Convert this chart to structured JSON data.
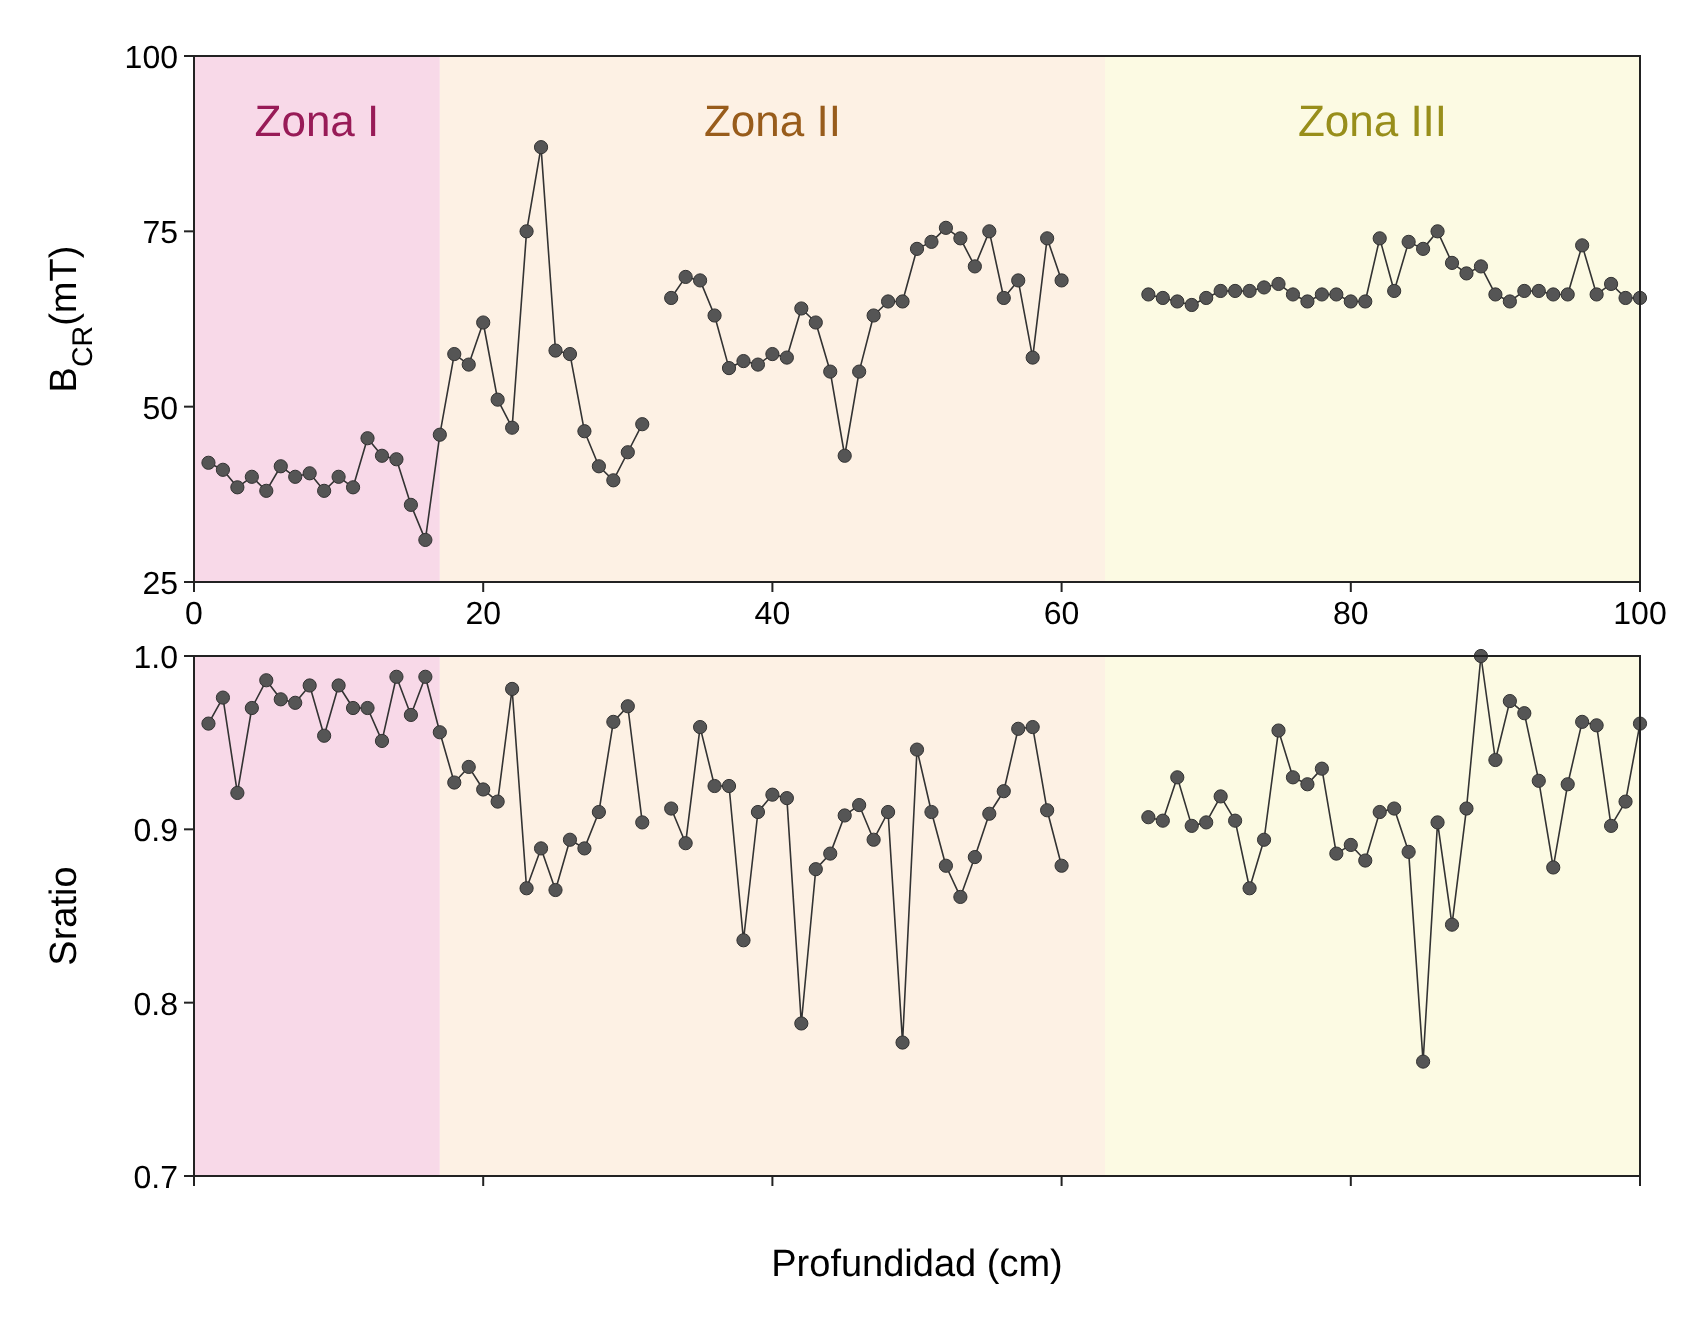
{
  "chart_data": [
    {
      "type": "line",
      "ylabel": "B$_{CR}$(mT)",
      "marker": "circle",
      "line_style": "solid",
      "xlim": [
        0,
        100
      ],
      "xticks": [
        0,
        20,
        40,
        60,
        80,
        100
      ],
      "ylim": [
        25,
        100
      ],
      "yticks": [
        25,
        50,
        75,
        100
      ],
      "bands": [
        {
          "axis": "x",
          "from": 0,
          "to": 17,
          "label": "Zona I",
          "color": "#f8d9e8"
        },
        {
          "axis": "x",
          "from": 17,
          "to": 63,
          "label": "Zona II",
          "color": "#fdf1e4"
        },
        {
          "axis": "x",
          "from": 63,
          "to": 100,
          "label": "Zona III",
          "color": "#fcfae3"
        }
      ],
      "series": [
        {
          "color": "#555555",
          "x": [
            1,
            2,
            3,
            4,
            5,
            6,
            7,
            8,
            9,
            10,
            11,
            12,
            13,
            14,
            15,
            16,
            17,
            18,
            19,
            20,
            21,
            22,
            23,
            24,
            25,
            26,
            27,
            28,
            29,
            30,
            31,
            32,
            33,
            34,
            35,
            36,
            37,
            38,
            39,
            40,
            41,
            42,
            43,
            44,
            45,
            46,
            47,
            48,
            49,
            50,
            51,
            52,
            53,
            54,
            55,
            56,
            57,
            58,
            59,
            60,
            61,
            66,
            67,
            68,
            69,
            70,
            71,
            72,
            73,
            74,
            75,
            76,
            77,
            78,
            79,
            80,
            81,
            82,
            83,
            84,
            85,
            86,
            87,
            88,
            89,
            90,
            91,
            92,
            93,
            94,
            95,
            96,
            97,
            98,
            99,
            100
          ],
          "values": [
            42,
            41,
            38.5,
            40,
            38,
            41.5,
            40,
            40.5,
            38,
            40,
            38.5,
            45.5,
            43,
            42.5,
            36,
            31,
            46,
            57.5,
            56,
            62,
            51,
            47,
            75,
            87,
            58,
            57.5,
            46.5,
            41.5,
            39.5,
            43.5,
            47.5,
            null,
            65.5,
            68.5,
            68,
            63,
            55.5,
            56.5,
            56,
            57.5,
            57,
            64,
            62,
            55,
            43,
            55,
            63,
            65,
            65,
            72.5,
            73.5,
            75.5,
            74,
            70,
            75,
            65.5,
            68,
            57,
            74,
            68,
            null,
            66,
            65.5,
            65,
            64.5,
            65.5,
            66.5,
            66.5,
            66.5,
            67,
            67.5,
            66,
            65,
            66,
            66,
            65,
            65,
            74,
            66.5,
            73.5,
            72.5,
            75,
            70.5,
            69,
            70,
            66,
            65,
            66.5,
            66.5,
            66,
            66,
            73,
            66,
            67.5,
            65.5,
            65.5
          ]
        }
      ]
    },
    {
      "type": "line",
      "ylabel": "Sratio",
      "xlabel": "Profundidad (cm)",
      "marker": "circle",
      "line_style": "solid",
      "tick_labels": "y",
      "xlim": [
        0,
        100
      ],
      "xticks": [
        0,
        20,
        40,
        60,
        80,
        100
      ],
      "ylim": [
        0.7,
        1.0
      ],
      "yticks": [
        {
          "value": 0.7,
          "label": "0.7"
        },
        {
          "value": 0.8,
          "label": "0.8"
        },
        {
          "value": 0.9,
          "label": "0.9"
        },
        {
          "value": 1.0,
          "label": "1.0"
        }
      ],
      "bands": [
        {
          "axis": "x",
          "from": 0,
          "to": 17,
          "color": "#f8d9e8"
        },
        {
          "axis": "x",
          "from": 17,
          "to": 63,
          "color": "#fdf1e4"
        },
        {
          "axis": "x",
          "from": 63,
          "to": 100,
          "color": "#fcfae3"
        }
      ],
      "series": [
        {
          "color": "#555555",
          "x": [
            1,
            2,
            3,
            4,
            5,
            6,
            7,
            8,
            9,
            10,
            11,
            12,
            13,
            14,
            15,
            16,
            17,
            18,
            19,
            20,
            21,
            22,
            23,
            24,
            25,
            26,
            27,
            28,
            29,
            30,
            31,
            32,
            33,
            34,
            35,
            36,
            37,
            38,
            39,
            40,
            41,
            42,
            43,
            44,
            45,
            46,
            47,
            48,
            49,
            50,
            51,
            52,
            53,
            54,
            55,
            56,
            57,
            58,
            59,
            60,
            61,
            66,
            67,
            68,
            69,
            70,
            71,
            72,
            73,
            74,
            75,
            76,
            77,
            78,
            79,
            80,
            81,
            82,
            83,
            84,
            85,
            86,
            87,
            88,
            89,
            90,
            91,
            92,
            93,
            94,
            95,
            96,
            97,
            98,
            99,
            100
          ],
          "values": [
            0.961,
            0.976,
            0.921,
            0.97,
            0.986,
            0.975,
            0.973,
            0.983,
            0.954,
            0.983,
            0.97,
            0.97,
            0.951,
            0.988,
            0.966,
            0.988,
            0.956,
            0.927,
            0.936,
            0.923,
            0.916,
            0.981,
            0.866,
            0.889,
            0.865,
            0.894,
            0.889,
            0.91,
            0.962,
            0.971,
            0.904,
            null,
            0.912,
            0.892,
            0.959,
            0.925,
            0.925,
            0.836,
            0.91,
            0.92,
            0.918,
            0.788,
            0.877,
            0.886,
            0.908,
            0.914,
            0.894,
            0.91,
            0.777,
            0.946,
            0.91,
            0.879,
            0.861,
            0.884,
            0.909,
            0.922,
            0.958,
            0.959,
            0.911,
            0.879,
            null,
            0.907,
            0.905,
            0.93,
            0.902,
            0.904,
            0.919,
            0.905,
            0.866,
            0.894,
            0.957,
            0.93,
            0.926,
            0.935,
            0.886,
            0.891,
            0.882,
            0.91,
            0.912,
            0.887,
            0.766,
            0.904,
            0.845,
            0.912,
            1.0,
            0.94,
            0.974,
            0.967,
            0.928,
            0.878,
            0.926,
            0.962,
            0.96,
            0.902,
            0.916,
            0.961
          ]
        }
      ]
    }
  ]
}
